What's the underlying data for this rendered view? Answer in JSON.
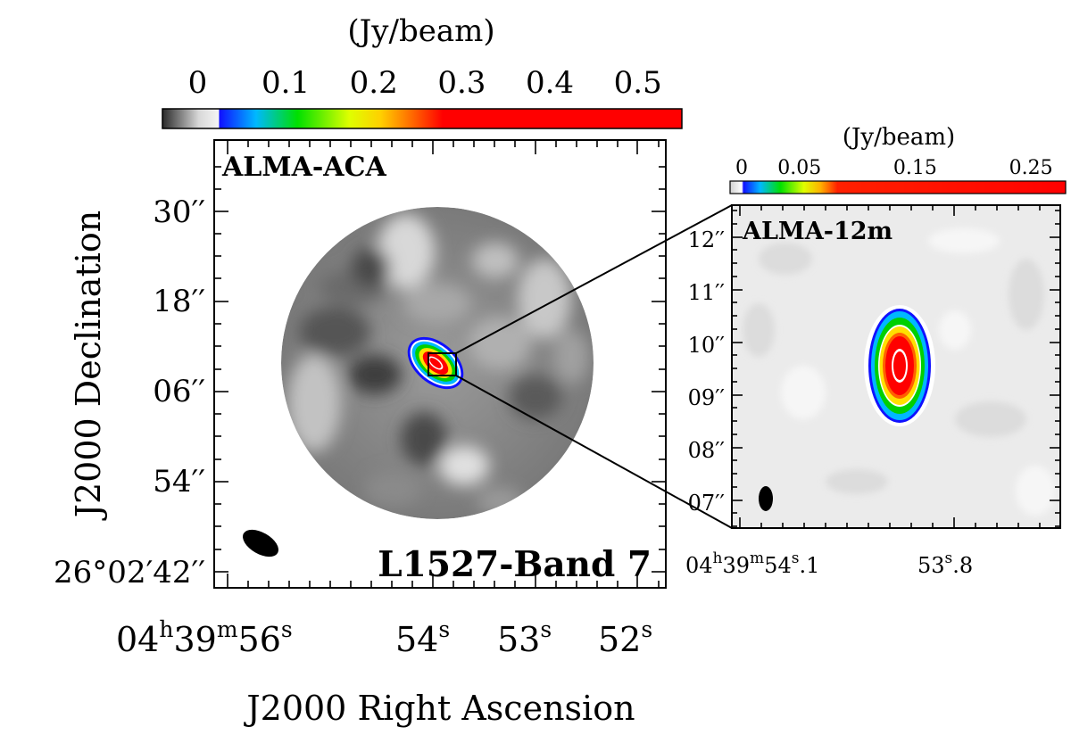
{
  "left_panel": {
    "colorbar": {
      "unit_label": "(Jy/beam)",
      "ticks": [
        "0",
        "0.1",
        "0.2",
        "0.3",
        "0.4",
        "0.5"
      ],
      "range": [
        -0.04,
        0.55
      ]
    },
    "corner_label": "ALMA-ACA",
    "source_label": "L1527-Band 7",
    "y_ticks": [
      "30′′",
      "18′′",
      "06′′",
      "54′′",
      "26°02′42′′"
    ],
    "x_ticks": [
      "04h39m56s",
      "54s",
      "53s",
      "52s"
    ],
    "y_axis_label": "J2000 Declination",
    "x_axis_label": "J2000 Right Ascension"
  },
  "right_panel": {
    "colorbar": {
      "unit_label": "(Jy/beam)",
      "ticks": [
        "0",
        "0.05",
        "0.15",
        "0.25"
      ],
      "range": [
        -0.01,
        0.28
      ]
    },
    "corner_label": "ALMA-12m",
    "y_ticks": [
      "12′′",
      "11′′",
      "10′′",
      "09′′",
      "08′′",
      "07′′"
    ],
    "x_ticks": [
      "04h39m54s.1",
      "53s.8"
    ]
  },
  "colors": {
    "colormap": [
      "#2f2f2f",
      "#ffffff",
      "#1010ff",
      "#00c8ff",
      "#00e000",
      "#ffff00",
      "#ff8000",
      "#ff0000"
    ],
    "frame": "#000000"
  }
}
